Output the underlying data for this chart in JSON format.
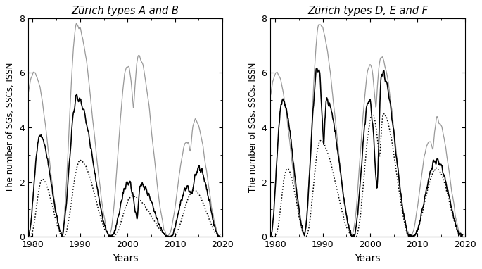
{
  "title_left": "Zürich types A and B",
  "title_right": "Zürich types D, E and F",
  "ylabel": "The number of SGs, SSCs, ISSN",
  "xlabel": "Years",
  "xlim": [
    1979,
    2020
  ],
  "ylim": [
    0,
    8
  ],
  "yticks": [
    0,
    2,
    4,
    6,
    8
  ],
  "xticks": [
    1980,
    1990,
    2000,
    2010,
    2020
  ],
  "gray_color": "#999999",
  "black_color": "#000000",
  "figsize": [
    6.85,
    3.82
  ],
  "dpi": 100
}
